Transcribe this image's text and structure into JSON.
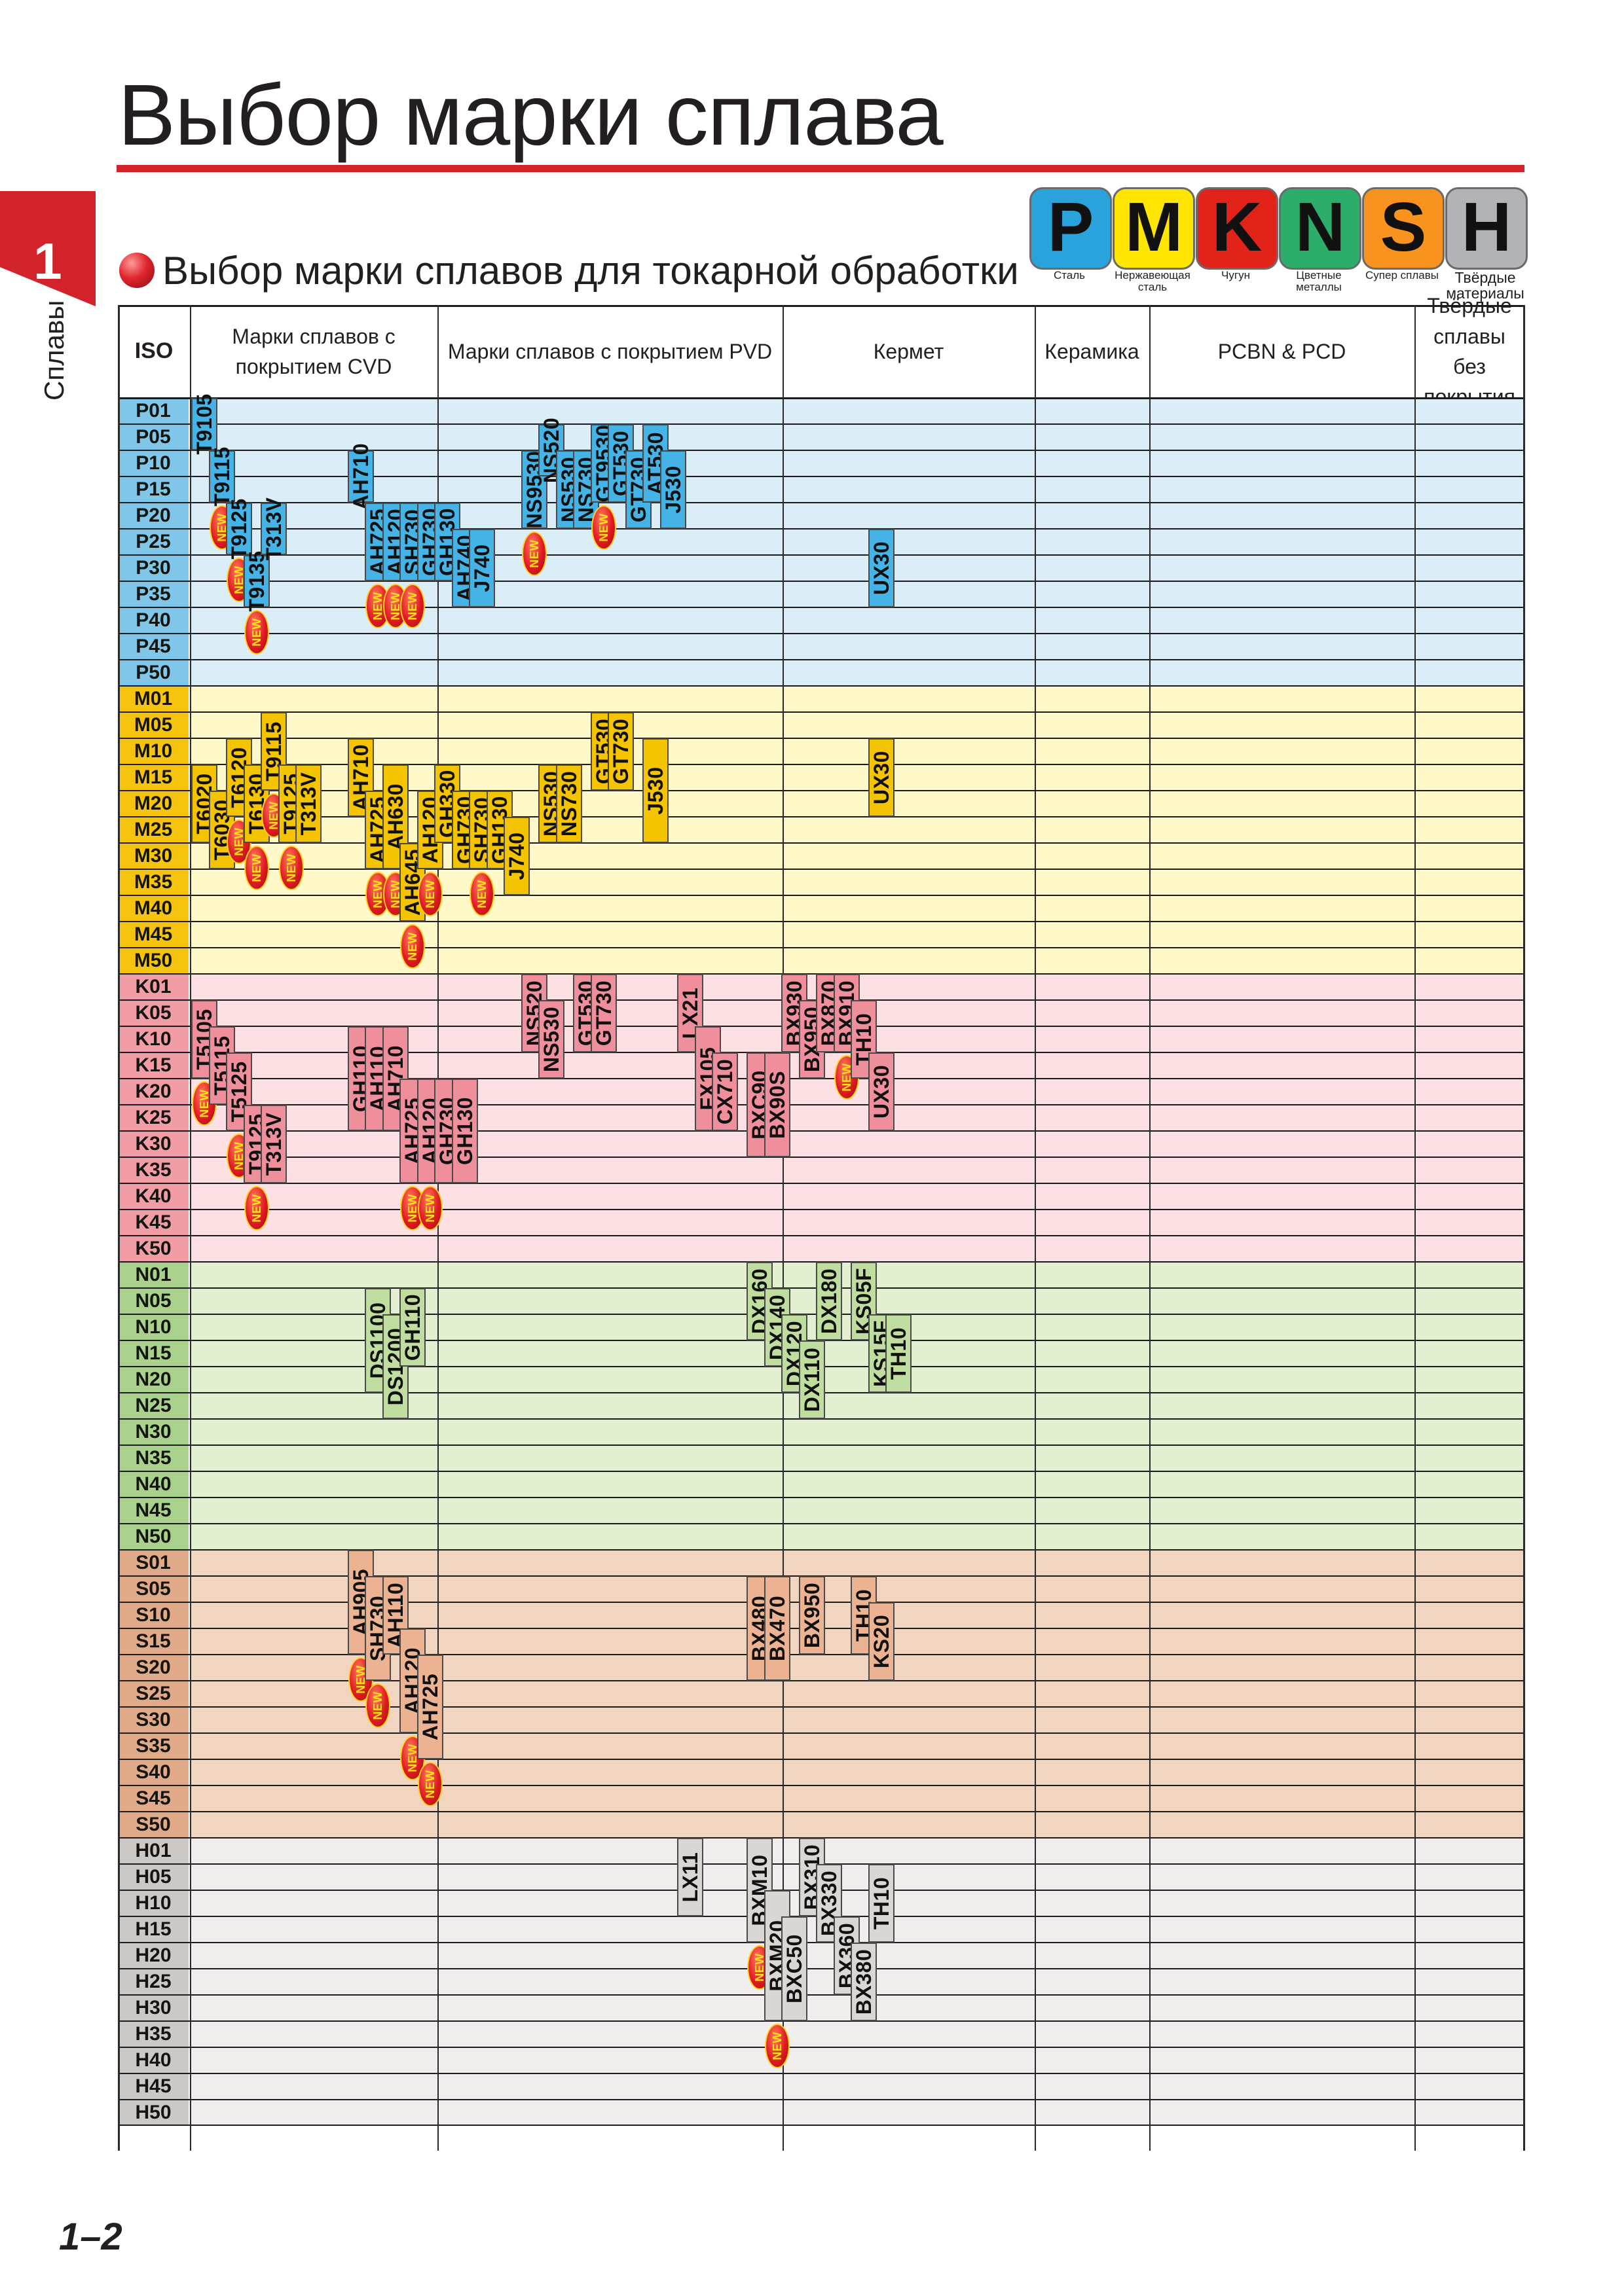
{
  "page_title": "Выбор марки сплава",
  "chapter_number": "1",
  "side_label": "Сплавы",
  "subtitle": "Выбор марки сплавов для токарной обработки",
  "materials": [
    {
      "letter": "P",
      "label": "Сталь",
      "color": "#2aa3dc"
    },
    {
      "letter": "M",
      "label": "Нержавеющая сталь",
      "color": "#ffe600"
    },
    {
      "letter": "K",
      "label": "Чугун",
      "color": "#e2231a"
    },
    {
      "letter": "N",
      "label": "Цветные металлы",
      "color": "#2cae6a"
    },
    {
      "letter": "S",
      "label": "Супер сплавы",
      "color": "#f7931e"
    },
    {
      "letter": "H",
      "label": "Твёрдые материалы",
      "color": "#b1b3b6"
    }
  ],
  "columns": [
    {
      "key": "iso",
      "label": "ISO"
    },
    {
      "key": "cvd",
      "label": "Марки сплавов с покрытием CVD"
    },
    {
      "key": "pvd",
      "label": "Марки сплавов с покрытием PVD"
    },
    {
      "key": "cermet",
      "label": "Кермет"
    },
    {
      "key": "ceramic",
      "label": "Керамика"
    },
    {
      "key": "pcbn",
      "label": "PCBN & PCD"
    },
    {
      "key": "uncoated",
      "label": "Твёрдые сплавы без покрытия"
    }
  ],
  "groups": [
    {
      "code": "P",
      "rows": [
        "P01",
        "P05",
        "P10",
        "P15",
        "P20",
        "P25",
        "P30",
        "P35",
        "P40",
        "P45",
        "P50"
      ],
      "band_color": "#dbeef8",
      "iso_color": "#7fc6e8",
      "grade_color": "#45b3e6"
    },
    {
      "code": "M",
      "rows": [
        "M01",
        "M05",
        "M10",
        "M15",
        "M20",
        "M25",
        "M30",
        "M35",
        "M40",
        "M45",
        "M50"
      ],
      "band_color": "#fff8c8",
      "iso_color": "#f6c40f",
      "grade_color": "#f5c400"
    },
    {
      "code": "K",
      "rows": [
        "K01",
        "K05",
        "K10",
        "K15",
        "K20",
        "K25",
        "K30",
        "K35",
        "K40",
        "K45",
        "K50"
      ],
      "band_color": "#fde0e3",
      "iso_color": "#f29ca6",
      "grade_color": "#ee8f9b"
    },
    {
      "code": "N",
      "rows": [
        "N01",
        "N05",
        "N10",
        "N15",
        "N20",
        "N25",
        "N30",
        "N35",
        "N40",
        "N45",
        "N50"
      ],
      "band_color": "#e2efd1",
      "iso_color": "#a9d18c",
      "grade_color": "#bfdd9f"
    },
    {
      "code": "S",
      "rows": [
        "S01",
        "S05",
        "S10",
        "S15",
        "S20",
        "S25",
        "S30",
        "S35",
        "S40",
        "S45",
        "S50"
      ],
      "band_color": "#f2d5c1",
      "iso_color": "#e0a987",
      "grade_color": "#ebb391"
    },
    {
      "code": "H",
      "rows": [
        "H01",
        "H05",
        "H10",
        "H15",
        "H20",
        "H25",
        "H30",
        "H35",
        "H40",
        "H45",
        "H50"
      ],
      "band_color": "#f1eeed",
      "iso_color": "#cbc8c6",
      "grade_color": "#dad6d3"
    }
  ],
  "grades": [
    {
      "name": "T9105",
      "group": "P",
      "col": 0,
      "start": 0,
      "end": 2,
      "new": false
    },
    {
      "name": "T9115",
      "group": "P",
      "col": 1,
      "start": 2,
      "end": 4,
      "new": true
    },
    {
      "name": "T9125",
      "group": "P",
      "col": 2,
      "start": 4,
      "end": 6,
      "new": true
    },
    {
      "name": "T9135",
      "group": "P",
      "col": 3,
      "start": 6,
      "end": 8,
      "new": true
    },
    {
      "name": "T313V",
      "group": "P",
      "col": 4,
      "start": 4,
      "end": 6,
      "new": false
    },
    {
      "name": "AH710",
      "group": "P",
      "col": 9,
      "start": 2,
      "end": 4,
      "new": false
    },
    {
      "name": "AH725",
      "group": "P",
      "col": 10,
      "start": 4,
      "end": 7,
      "new": true
    },
    {
      "name": "AH120",
      "group": "P",
      "col": 11,
      "start": 4,
      "end": 7,
      "new": true
    },
    {
      "name": "SH730",
      "group": "P",
      "col": 12,
      "start": 4,
      "end": 7,
      "new": true
    },
    {
      "name": "GH730",
      "group": "P",
      "col": 13,
      "start": 4,
      "end": 7,
      "new": false
    },
    {
      "name": "GH130",
      "group": "P",
      "col": 14,
      "start": 4,
      "end": 7,
      "new": false
    },
    {
      "name": "AH740",
      "group": "P",
      "col": 15,
      "start": 5,
      "end": 8,
      "new": false
    },
    {
      "name": "J740",
      "group": "P",
      "col": 16,
      "start": 5,
      "end": 8,
      "new": false
    },
    {
      "name": "NS9530",
      "group": "P",
      "col": 19,
      "start": 2,
      "end": 5,
      "new": true
    },
    {
      "name": "NS520",
      "group": "P",
      "col": 20,
      "start": 1,
      "end": 3,
      "new": false
    },
    {
      "name": "NS530",
      "group": "P",
      "col": 21,
      "start": 2,
      "end": 5,
      "new": false
    },
    {
      "name": "NS730",
      "group": "P",
      "col": 22,
      "start": 2,
      "end": 5,
      "new": false
    },
    {
      "name": "GT9530",
      "group": "P",
      "col": 23,
      "start": 1,
      "end": 4,
      "new": true
    },
    {
      "name": "GT530",
      "group": "P",
      "col": 24,
      "start": 1,
      "end": 4,
      "new": false
    },
    {
      "name": "GT730",
      "group": "P",
      "col": 25,
      "start": 2,
      "end": 5,
      "new": false
    },
    {
      "name": "AT530",
      "group": "P",
      "col": 26,
      "start": 1,
      "end": 4,
      "new": false
    },
    {
      "name": "J530",
      "group": "P",
      "col": 27,
      "start": 2,
      "end": 5,
      "new": false
    },
    {
      "name": "UX30",
      "group": "P",
      "col": 39,
      "start": 5,
      "end": 8,
      "new": false
    },
    {
      "name": "T6020",
      "group": "M",
      "col": 0,
      "start": 3,
      "end": 6,
      "new": false
    },
    {
      "name": "T6030",
      "group": "M",
      "col": 1,
      "start": 4,
      "end": 7,
      "new": false
    },
    {
      "name": "T6120",
      "group": "M",
      "col": 2,
      "start": 2,
      "end": 5,
      "new": true
    },
    {
      "name": "T6130",
      "group": "M",
      "col": 3,
      "start": 3,
      "end": 6,
      "new": true
    },
    {
      "name": "T9115",
      "group": "M",
      "col": 4,
      "start": 1,
      "end": 4,
      "new": true
    },
    {
      "name": "T9125",
      "group": "M",
      "col": 5,
      "start": 3,
      "end": 6,
      "new": true
    },
    {
      "name": "T313V",
      "group": "M",
      "col": 6,
      "start": 3,
      "end": 6,
      "new": false
    },
    {
      "name": "AH710",
      "group": "M",
      "col": 9,
      "start": 2,
      "end": 5,
      "new": false
    },
    {
      "name": "AH725",
      "group": "M",
      "col": 10,
      "start": 4,
      "end": 7,
      "new": true
    },
    {
      "name": "AH630",
      "group": "M",
      "col": 11,
      "start": 3,
      "end": 7,
      "new": true
    },
    {
      "name": "AH645",
      "group": "M",
      "col": 12,
      "start": 6,
      "end": 9,
      "new": true
    },
    {
      "name": "AH120",
      "group": "M",
      "col": 13,
      "start": 4,
      "end": 7,
      "new": true
    },
    {
      "name": "GH330",
      "group": "M",
      "col": 14,
      "start": 3,
      "end": 6,
      "new": false
    },
    {
      "name": "GH730",
      "group": "M",
      "col": 15,
      "start": 4,
      "end": 7,
      "new": false
    },
    {
      "name": "SH730",
      "group": "M",
      "col": 16,
      "start": 4,
      "end": 7,
      "new": true
    },
    {
      "name": "GH130",
      "group": "M",
      "col": 17,
      "start": 4,
      "end": 7,
      "new": false
    },
    {
      "name": "J740",
      "group": "M",
      "col": 18,
      "start": 5,
      "end": 8,
      "new": false
    },
    {
      "name": "NS530",
      "group": "M",
      "col": 20,
      "start": 3,
      "end": 6,
      "new": false
    },
    {
      "name": "NS730",
      "group": "M",
      "col": 21,
      "start": 3,
      "end": 6,
      "new": false
    },
    {
      "name": "GT530",
      "group": "M",
      "col": 23,
      "start": 1,
      "end": 4,
      "new": false
    },
    {
      "name": "GT730",
      "group": "M",
      "col": 24,
      "start": 1,
      "end": 4,
      "new": false
    },
    {
      "name": "J530",
      "group": "M",
      "col": 26,
      "start": 2,
      "end": 6,
      "new": false
    },
    {
      "name": "UX30",
      "group": "M",
      "col": 39,
      "start": 2,
      "end": 5,
      "new": false
    },
    {
      "name": "T5105",
      "group": "K",
      "col": 0,
      "start": 1,
      "end": 4,
      "new": true
    },
    {
      "name": "T5115",
      "group": "K",
      "col": 1,
      "start": 2,
      "end": 5,
      "new": false
    },
    {
      "name": "T5125",
      "group": "K",
      "col": 2,
      "start": 3,
      "end": 6,
      "new": true
    },
    {
      "name": "T9125",
      "group": "K",
      "col": 3,
      "start": 5,
      "end": 8,
      "new": true
    },
    {
      "name": "T313V",
      "group": "K",
      "col": 4,
      "start": 5,
      "end": 8,
      "new": false
    },
    {
      "name": "GH110",
      "group": "K",
      "col": 9,
      "start": 2,
      "end": 6,
      "new": false
    },
    {
      "name": "AH110",
      "group": "K",
      "col": 10,
      "start": 2,
      "end": 6,
      "new": false
    },
    {
      "name": "AH710",
      "group": "K",
      "col": 11,
      "start": 2,
      "end": 6,
      "new": false
    },
    {
      "name": "AH725",
      "group": "K",
      "col": 12,
      "start": 4,
      "end": 8,
      "new": true
    },
    {
      "name": "AH120",
      "group": "K",
      "col": 13,
      "start": 4,
      "end": 8,
      "new": true
    },
    {
      "name": "GH730",
      "group": "K",
      "col": 14,
      "start": 4,
      "end": 8,
      "new": false
    },
    {
      "name": "GH130",
      "group": "K",
      "col": 15,
      "start": 4,
      "end": 8,
      "new": false
    },
    {
      "name": "NS520",
      "group": "K",
      "col": 19,
      "start": 0,
      "end": 3,
      "new": false
    },
    {
      "name": "NS530",
      "group": "K",
      "col": 20,
      "start": 1,
      "end": 4,
      "new": false
    },
    {
      "name": "GT530",
      "group": "K",
      "col": 22,
      "start": 0,
      "end": 3,
      "new": false
    },
    {
      "name": "GT730",
      "group": "K",
      "col": 23,
      "start": 0,
      "end": 3,
      "new": false
    },
    {
      "name": "LX21",
      "group": "K",
      "col": 28,
      "start": 0,
      "end": 3,
      "new": false
    },
    {
      "name": "FX105",
      "group": "K",
      "col": 29,
      "start": 2,
      "end": 6,
      "new": false
    },
    {
      "name": "CX710",
      "group": "K",
      "col": 30,
      "start": 3,
      "end": 6,
      "new": false
    },
    {
      "name": "BXC90",
      "group": "K",
      "col": 32,
      "start": 3,
      "end": 7,
      "new": false
    },
    {
      "name": "BX90S",
      "group": "K",
      "col": 33,
      "start": 3,
      "end": 7,
      "new": false
    },
    {
      "name": "BX930",
      "group": "K",
      "col": 34,
      "start": 0,
      "end": 3,
      "new": false
    },
    {
      "name": "BX950",
      "group": "K",
      "col": 35,
      "start": 1,
      "end": 4,
      "new": false
    },
    {
      "name": "BX870",
      "group": "K",
      "col": 36,
      "start": 0,
      "end": 3,
      "new": false
    },
    {
      "name": "BX910",
      "group": "K",
      "col": 37,
      "start": 0,
      "end": 3,
      "new": true
    },
    {
      "name": "TH10",
      "group": "K",
      "col": 38,
      "start": 1,
      "end": 4,
      "new": false
    },
    {
      "name": "UX30",
      "group": "K",
      "col": 39,
      "start": 3,
      "end": 6,
      "new": false
    },
    {
      "name": "DS1100",
      "group": "N",
      "col": 10,
      "start": 1,
      "end": 5,
      "new": false
    },
    {
      "name": "DS1200",
      "group": "N",
      "col": 11,
      "start": 2,
      "end": 6,
      "new": false
    },
    {
      "name": "GH110",
      "group": "N",
      "col": 12,
      "start": 1,
      "end": 4,
      "new": false
    },
    {
      "name": "DX160",
      "group": "N",
      "col": 32,
      "start": 0,
      "end": 3,
      "new": false
    },
    {
      "name": "DX140",
      "group": "N",
      "col": 33,
      "start": 1,
      "end": 4,
      "new": false
    },
    {
      "name": "DX120",
      "group": "N",
      "col": 34,
      "start": 2,
      "end": 5,
      "new": false
    },
    {
      "name": "DX110",
      "group": "N",
      "col": 35,
      "start": 3,
      "end": 6,
      "new": false
    },
    {
      "name": "DX180",
      "group": "N",
      "col": 36,
      "start": 0,
      "end": 3,
      "new": false
    },
    {
      "name": "KS05F",
      "group": "N",
      "col": 38,
      "start": 0,
      "end": 3,
      "new": false
    },
    {
      "name": "KS15F",
      "group": "N",
      "col": 39,
      "start": 2,
      "end": 5,
      "new": false
    },
    {
      "name": "TH10",
      "group": "N",
      "col": 40,
      "start": 2,
      "end": 5,
      "new": false
    },
    {
      "name": "AH905",
      "group": "S",
      "col": 9,
      "start": 0,
      "end": 4,
      "new": true
    },
    {
      "name": "SH730",
      "group": "S",
      "col": 10,
      "start": 1,
      "end": 5,
      "new": true
    },
    {
      "name": "AH110",
      "group": "S",
      "col": 11,
      "start": 1,
      "end": 4,
      "new": false
    },
    {
      "name": "AH120",
      "group": "S",
      "col": 12,
      "start": 3,
      "end": 7,
      "new": true
    },
    {
      "name": "AH725",
      "group": "S",
      "col": 13,
      "start": 4,
      "end": 8,
      "new": true
    },
    {
      "name": "BX480",
      "group": "S",
      "col": 32,
      "start": 1,
      "end": 5,
      "new": false
    },
    {
      "name": "BX470",
      "group": "S",
      "col": 33,
      "start": 1,
      "end": 5,
      "new": false
    },
    {
      "name": "BX950",
      "group": "S",
      "col": 35,
      "start": 1,
      "end": 4,
      "new": false
    },
    {
      "name": "TH10",
      "group": "S",
      "col": 38,
      "start": 1,
      "end": 4,
      "new": false
    },
    {
      "name": "KS20",
      "group": "S",
      "col": 39,
      "start": 2,
      "end": 5,
      "new": false
    },
    {
      "name": "LX11",
      "group": "H",
      "col": 28,
      "start": 0,
      "end": 3,
      "new": false
    },
    {
      "name": "BXM10",
      "group": "H",
      "col": 32,
      "start": 0,
      "end": 4,
      "new": true
    },
    {
      "name": "BXM20",
      "group": "H",
      "col": 33,
      "start": 2,
      "end": 7,
      "new": true
    },
    {
      "name": "BXC50",
      "group": "H",
      "col": 34,
      "start": 3,
      "end": 7,
      "new": false
    },
    {
      "name": "BX310",
      "group": "H",
      "col": 35,
      "start": 0,
      "end": 3,
      "new": false
    },
    {
      "name": "BX330",
      "group": "H",
      "col": 36,
      "start": 1,
      "end": 4,
      "new": false
    },
    {
      "name": "BX360",
      "group": "H",
      "col": 37,
      "start": 3,
      "end": 6,
      "new": false
    },
    {
      "name": "BX380",
      "group": "H",
      "col": 38,
      "start": 4,
      "end": 7,
      "new": false
    },
    {
      "name": "TH10",
      "group": "H",
      "col": 39,
      "start": 1,
      "end": 4,
      "new": false
    }
  ],
  "new_badge_text": "NEW",
  "page_number": "1–2"
}
